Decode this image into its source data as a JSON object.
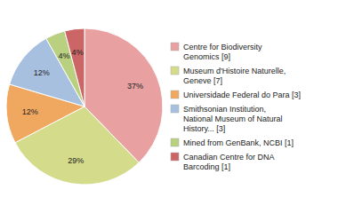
{
  "chart_data": {
    "type": "pie",
    "categories": [
      "Centre for Biodiversity\nGenomics [9]",
      "Museum d'Histoire Naturelle,\nGeneve [7]",
      "Universidade Federal do Para [3]",
      "Smithsonian Institution,\nNational Museum of Natural\nHistory... [3]",
      "Mined from GenBank, NCBI [1]",
      "Canadian Centre for DNA\nBarcoding [1]"
    ],
    "values": [
      37,
      29,
      12,
      12,
      4,
      4
    ],
    "value_labels": [
      "37%",
      "29%",
      "12%",
      "12%",
      "4%",
      "4%"
    ],
    "colors": [
      "#e8a0a0",
      "#d4db8a",
      "#f0a860",
      "#a8c0e0",
      "#b8d080",
      "#cc6666"
    ],
    "data_labels": true,
    "legend": "right"
  }
}
